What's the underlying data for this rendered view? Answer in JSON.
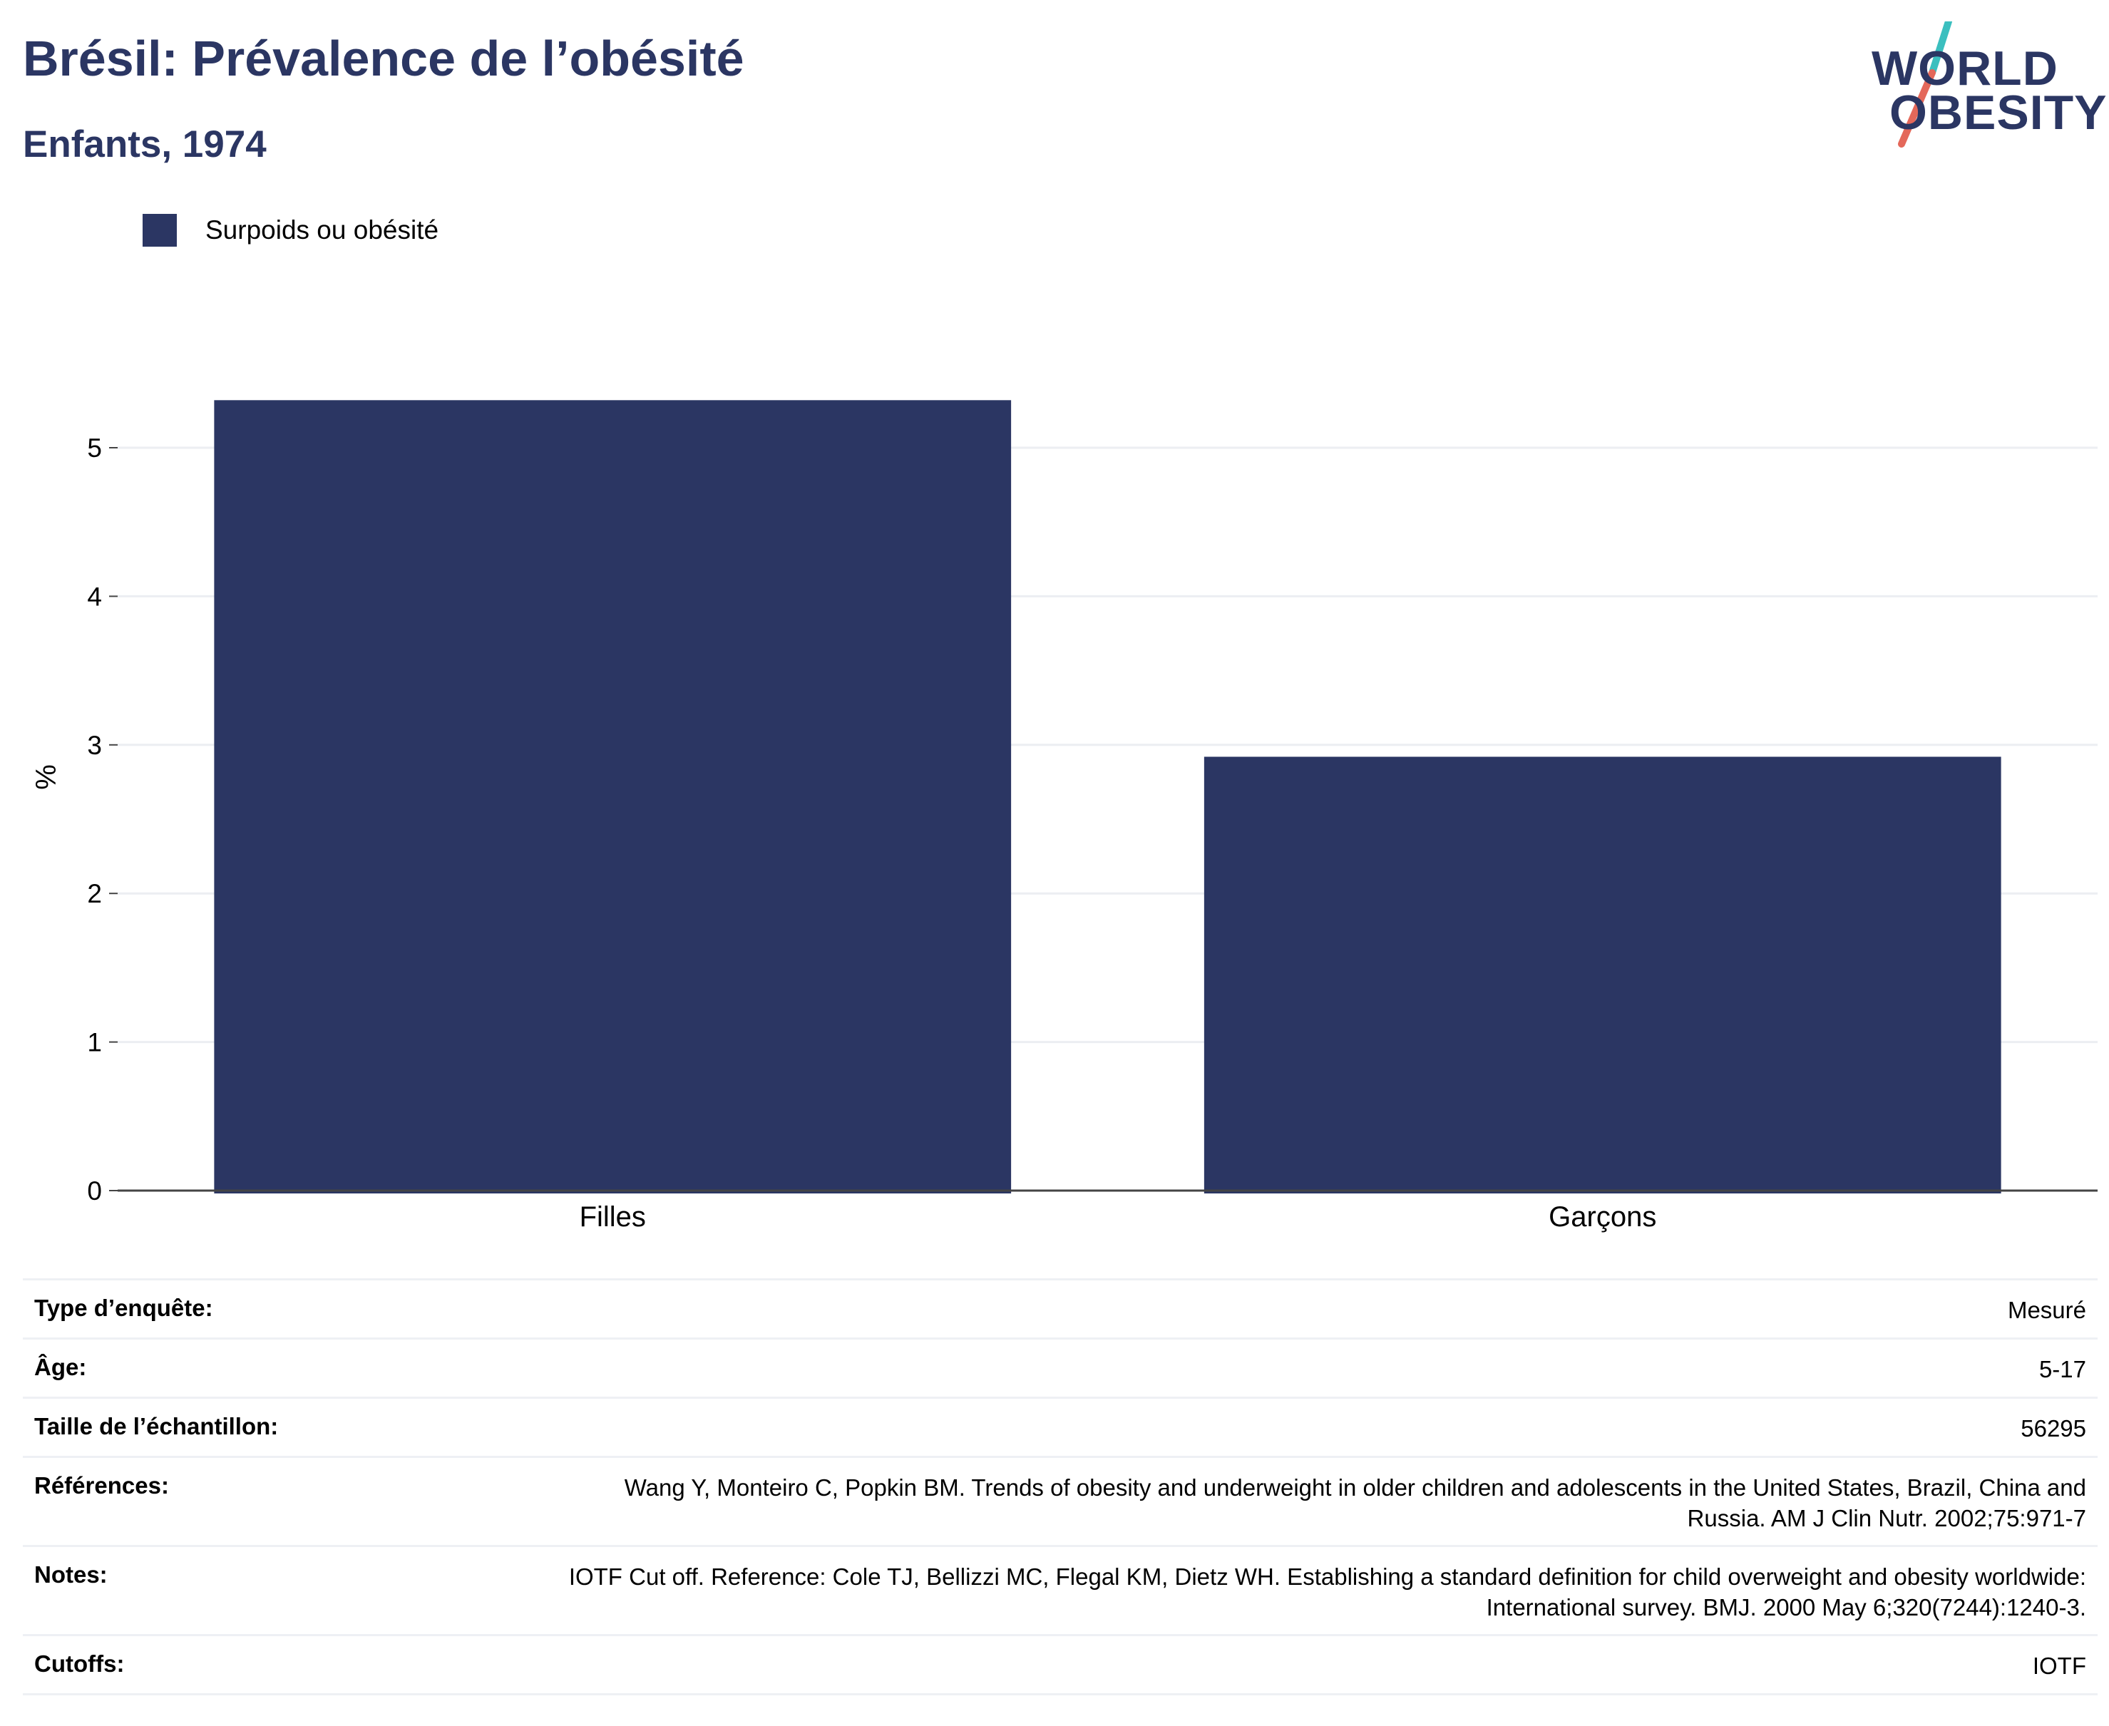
{
  "header": {
    "title": "Brésil: Prévalence de l’obésité",
    "subtitle": "Enfants, 1974"
  },
  "logo": {
    "line1": "WORLD",
    "line2": "OBESITY",
    "colors": {
      "text": "#2b3663",
      "slash_top": "#3bbfbf",
      "slash_bottom": "#e4685a"
    }
  },
  "legend": {
    "items": [
      {
        "label": "Surpoids ou obésité",
        "color": "#2b3663"
      }
    ]
  },
  "chart_data": {
    "type": "bar",
    "categories": [
      "Filles",
      "Garçons"
    ],
    "series": [
      {
        "name": "Surpoids ou obésité",
        "values": [
          5.32,
          2.92
        ],
        "color": "#2b3663"
      }
    ],
    "title": "Brésil: Prévalence de l’obésité",
    "subtitle": "Enfants, 1974",
    "xlabel": "",
    "ylabel": "%",
    "ylim": [
      0,
      5.3
    ],
    "yticks": [
      0,
      1,
      2,
      3,
      4,
      5
    ],
    "grid": true,
    "legend_position": "top-left"
  },
  "info": {
    "rows": [
      {
        "label": "Type d’enquête:",
        "value": "Mesuré"
      },
      {
        "label": "Âge:",
        "value": "5-17"
      },
      {
        "label": "Taille de l’échantillon:",
        "value": "56295"
      },
      {
        "label": "Références:",
        "value": "Wang Y, Monteiro C, Popkin BM. Trends of obesity and underweight in older children and adolescents in the United States, Brazil, China and Russia. AM J Clin Nutr. 2002;75:971-7"
      },
      {
        "label": "Notes:",
        "value": "IOTF Cut off. Reference: Cole TJ, Bellizzi MC, Flegal KM, Dietz WH. Establishing a standard definition for child overweight and obesity worldwide: International survey. BMJ. 2000 May 6;320(7244):1240-3."
      },
      {
        "label": "Cutoffs:",
        "value": "IOTF"
      }
    ]
  }
}
